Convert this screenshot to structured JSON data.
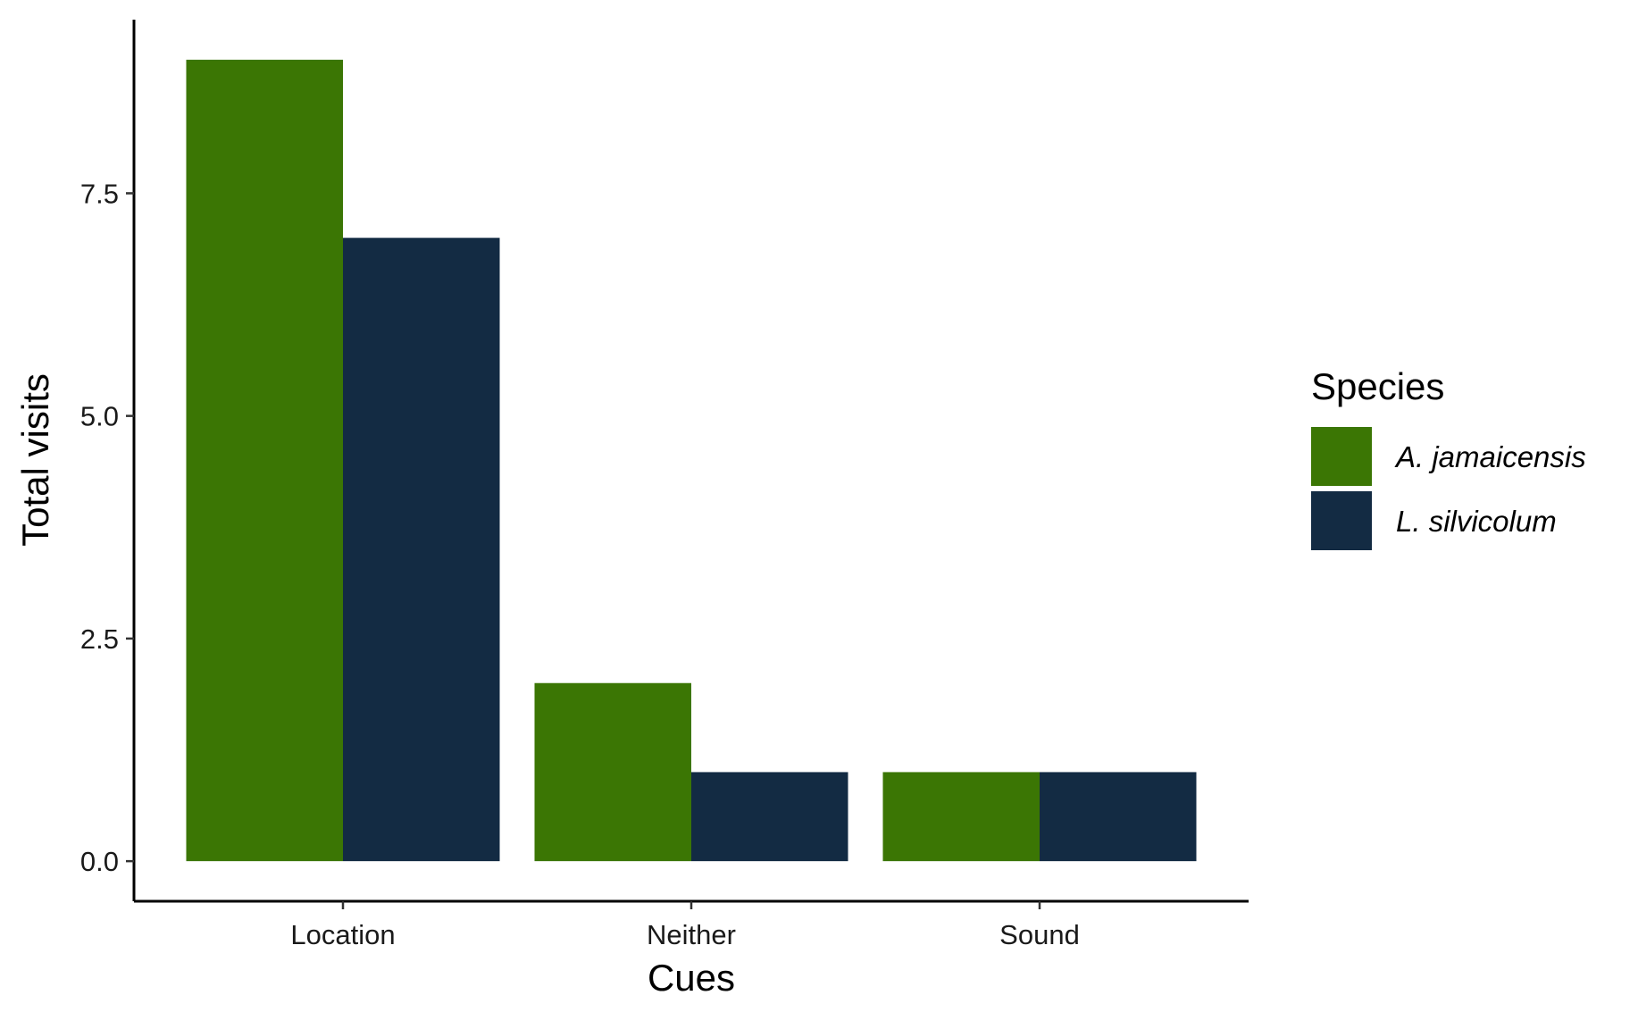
{
  "chart_data": {
    "type": "bar",
    "title": "",
    "xlabel": "Cues",
    "ylabel": "Total visits",
    "categories": [
      "Location",
      "Neither",
      "Sound"
    ],
    "series": [
      {
        "name": "A. jamaicensis",
        "values": [
          9,
          2,
          1
        ],
        "color": "#3b7604"
      },
      {
        "name": "L. silvicolum",
        "values": [
          7,
          1,
          1
        ],
        "color": "#132b43"
      }
    ],
    "ylim": [
      -0.45,
      9.45
    ],
    "yticks": [
      0.0,
      2.5,
      5.0,
      7.5
    ],
    "ytick_labels": [
      "0.0",
      "2.5",
      "5.0",
      "7.5"
    ],
    "grid": false,
    "legend": {
      "title": "Species",
      "placement": "right"
    }
  }
}
